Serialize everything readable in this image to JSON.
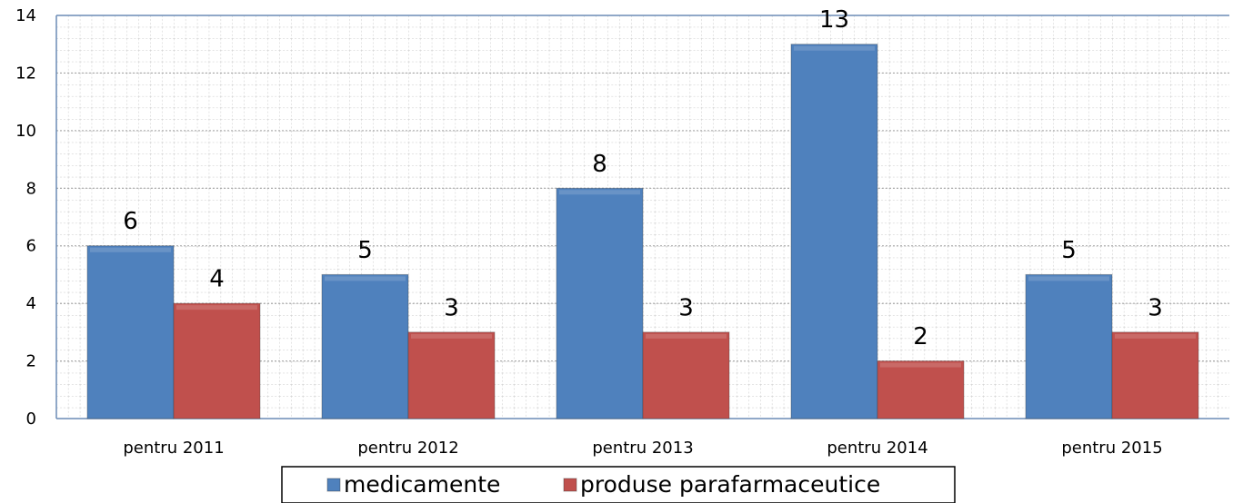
{
  "chart_data": {
    "type": "bar",
    "categories": [
      "pentru 2011",
      "pentru 2012",
      "pentru 2013",
      "pentru 2014",
      "pentru 2015"
    ],
    "series": [
      {
        "name": "medicamente",
        "color": "#4f81bd",
        "values": [
          6,
          5,
          8,
          13,
          5
        ]
      },
      {
        "name": "produse parafarmaceutice",
        "color": "#c0504d",
        "values": [
          4,
          3,
          3,
          2,
          3
        ]
      }
    ],
    "ylim": [
      0,
      14
    ],
    "yticks": [
      0,
      2,
      4,
      6,
      8,
      10,
      12,
      14
    ],
    "grid": true,
    "legend": "bottom"
  }
}
